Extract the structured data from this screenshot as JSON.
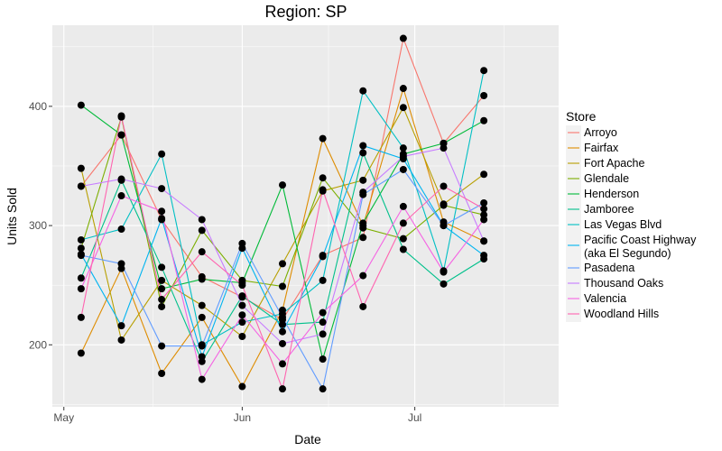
{
  "chart_data": {
    "type": "line",
    "title": "Region: SP",
    "xlabel": "Date",
    "ylabel": "Units Sold",
    "x_ticks": [
      "May",
      "Jun",
      "Jul"
    ],
    "y_ticks": [
      200,
      300,
      400
    ],
    "xlim": [
      "2000-04-29",
      "2000-07-26"
    ],
    "ylim": [
      148,
      468
    ],
    "grid": true,
    "background": "#ebebeb",
    "legend": {
      "title": "Store",
      "position": "right",
      "entries": [
        {
          "label": "Arroyo",
          "color": "#F8766D"
        },
        {
          "label": "Fairfax",
          "color": "#DE8C00"
        },
        {
          "label": "Fort Apache",
          "color": "#B79F00"
        },
        {
          "label": "Glendale",
          "color": "#7CAE00"
        },
        {
          "label": "Henderson",
          "color": "#00BA38"
        },
        {
          "label": "Jamboree",
          "color": "#00C08B"
        },
        {
          "label": "Las Vegas Blvd",
          "color": "#00BFC4"
        },
        {
          "label": [
            "Pacific Coast Highway",
            "(aka El Segundo)"
          ],
          "color": "#00B4F0"
        },
        {
          "label": "Pasadena",
          "color": "#619CFF"
        },
        {
          "label": "Thousand Oaks",
          "color": "#C77CFF"
        },
        {
          "label": "Valencia",
          "color": "#F564E3"
        },
        {
          "label": "Woodland Hills",
          "color": "#FF64B0"
        }
      ]
    },
    "x": [
      "2000-05-04",
      "2000-05-11",
      "2000-05-18",
      "2000-05-25",
      "2000-06-01",
      "2000-06-08",
      "2000-06-15",
      "2000-06-22",
      "2000-06-29",
      "2000-07-06",
      "2000-07-13"
    ],
    "series": [
      {
        "name": "Arroyo",
        "values": [
          333,
          376,
          305,
          257,
          240,
          221,
          275,
          290,
          457,
          369,
          409
        ]
      },
      {
        "name": "Fairfax",
        "values": [
          193,
          264,
          176,
          223,
          165,
          229,
          373,
          300,
          415,
          303,
          287
        ]
      },
      {
        "name": "Fort Apache",
        "values": [
          348,
          204,
          254,
          233,
          207,
          268,
          329,
          338,
          399,
          318,
          343
        ]
      },
      {
        "name": "Glendale",
        "values": [
          281,
          391,
          232,
          296,
          254,
          249,
          340,
          298,
          289,
          317,
          309
        ]
      },
      {
        "name": "Henderson",
        "values": [
          401,
          376,
          247,
          255,
          252,
          334,
          188,
          302,
          360,
          369,
          388
        ]
      },
      {
        "name": "Jamboree",
        "values": [
          256,
          338,
          265,
          186,
          241,
          217,
          219,
          361,
          280,
          251,
          272
        ]
      },
      {
        "name": "Las Vegas Blvd",
        "values": [
          288,
          297,
          360,
          200,
          219,
          226,
          254,
          413,
          365,
          262,
          430
        ]
      },
      {
        "name": "Pacific Coast Highway (aka El Segundo)",
        "values": [
          276,
          216,
          306,
          190,
          281,
          211,
          274,
          367,
          356,
          300,
          275
        ]
      },
      {
        "name": "Pasadena",
        "values": [
          275,
          268,
          199,
          199,
          285,
          223,
          163,
          326,
          347,
          300,
          319
        ]
      },
      {
        "name": "Thousand Oaks",
        "values": [
          333,
          339,
          331,
          305,
          233,
          201,
          209,
          328,
          358,
          365,
          287
        ]
      },
      {
        "name": "Valencia",
        "values": [
          247,
          325,
          312,
          171,
          225,
          184,
          227,
          258,
          316,
          261,
          305
        ]
      },
      {
        "name": "Woodland Hills",
        "values": [
          223,
          392,
          238,
          278,
          250,
          163,
          330,
          232,
          302,
          333,
          314
        ]
      }
    ]
  }
}
